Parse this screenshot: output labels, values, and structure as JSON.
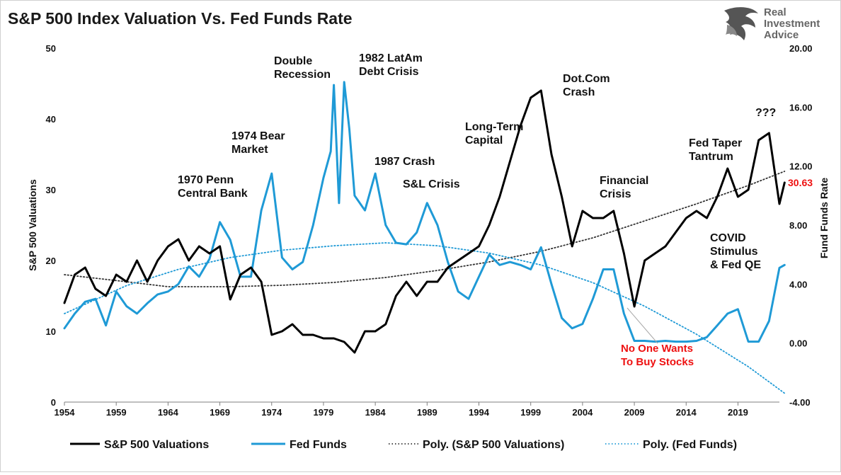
{
  "logo": {
    "line1": "Real",
    "line2": "Investment",
    "line3": "Advice"
  },
  "chart_data": {
    "type": "line",
    "title": "S&P 500 Index Valuation Vs. Fed Funds Rate",
    "xlabel": "",
    "ylabel_left": "S&P 500 Valuations",
    "ylabel_right": "Fund Funds Rate",
    "xlim": [
      1954,
      2023
    ],
    "ylim_left": [
      0,
      50
    ],
    "ylim_right": [
      -4,
      20
    ],
    "x_ticks": [
      "1954",
      "1959",
      "1964",
      "1969",
      "1974",
      "1979",
      "1984",
      "1989",
      "1994",
      "1999",
      "2004",
      "2009",
      "2014",
      "2019"
    ],
    "y_left_ticks": [
      "0",
      "10",
      "20",
      "30",
      "40",
      "50"
    ],
    "y_right_ticks": [
      "-4.00",
      "0.00",
      "4.00",
      "8.00",
      "12.00",
      "16.00",
      "20.00"
    ],
    "grid": false,
    "legend_position": "bottom",
    "last_value_label": "30.63",
    "series": [
      {
        "name": "S&P 500 Valuations",
        "axis": "left",
        "color": "#000000",
        "style": "solid",
        "points": [
          [
            1954,
            14
          ],
          [
            1955,
            18
          ],
          [
            1956,
            19
          ],
          [
            1957,
            16
          ],
          [
            1958,
            15
          ],
          [
            1959,
            18
          ],
          [
            1960,
            17
          ],
          [
            1961,
            20
          ],
          [
            1962,
            17
          ],
          [
            1963,
            20
          ],
          [
            1964,
            22
          ],
          [
            1965,
            23
          ],
          [
            1966,
            20
          ],
          [
            1967,
            22
          ],
          [
            1968,
            21
          ],
          [
            1969,
            22
          ],
          [
            1970,
            14.5
          ],
          [
            1971,
            18
          ],
          [
            1972,
            19
          ],
          [
            1973,
            17
          ],
          [
            1974,
            9.5
          ],
          [
            1975,
            10
          ],
          [
            1976,
            11
          ],
          [
            1977,
            9.5
          ],
          [
            1978,
            9.5
          ],
          [
            1979,
            9
          ],
          [
            1980,
            9
          ],
          [
            1981,
            8.5
          ],
          [
            1982,
            7
          ],
          [
            1983,
            10
          ],
          [
            1984,
            10
          ],
          [
            1985,
            11
          ],
          [
            1986,
            15
          ],
          [
            1987,
            17
          ],
          [
            1988,
            15
          ],
          [
            1989,
            17
          ],
          [
            1990,
            17
          ],
          [
            1991,
            19
          ],
          [
            1992,
            20
          ],
          [
            1993,
            21
          ],
          [
            1994,
            22
          ],
          [
            1995,
            25
          ],
          [
            1996,
            29
          ],
          [
            1997,
            34
          ],
          [
            1998,
            39
          ],
          [
            1999,
            43
          ],
          [
            2000,
            44
          ],
          [
            2001,
            35
          ],
          [
            2002,
            29
          ],
          [
            2003,
            22
          ],
          [
            2004,
            27
          ],
          [
            2005,
            26
          ],
          [
            2006,
            26
          ],
          [
            2007,
            27
          ],
          [
            2008,
            21
          ],
          [
            2009,
            13.5
          ],
          [
            2010,
            20
          ],
          [
            2011,
            21
          ],
          [
            2012,
            22
          ],
          [
            2013,
            24
          ],
          [
            2014,
            26
          ],
          [
            2015,
            27
          ],
          [
            2016,
            26
          ],
          [
            2017,
            29
          ],
          [
            2018,
            33
          ],
          [
            2019,
            29
          ],
          [
            2020,
            30
          ],
          [
            2021,
            37
          ],
          [
            2022,
            38
          ],
          [
            2023,
            28
          ],
          [
            2023.5,
            31
          ]
        ]
      },
      {
        "name": "Fed Funds",
        "axis": "right",
        "color": "#1f9ad6",
        "style": "solid",
        "points": [
          [
            1954,
            1
          ],
          [
            1955,
            2
          ],
          [
            1956,
            2.8
          ],
          [
            1957,
            3
          ],
          [
            1958,
            1.2
          ],
          [
            1959,
            3.5
          ],
          [
            1960,
            2.5
          ],
          [
            1961,
            2
          ],
          [
            1962,
            2.7
          ],
          [
            1963,
            3.3
          ],
          [
            1964,
            3.5
          ],
          [
            1965,
            4
          ],
          [
            1966,
            5.2
          ],
          [
            1967,
            4.5
          ],
          [
            1968,
            5.7
          ],
          [
            1969,
            8.2
          ],
          [
            1970,
            7
          ],
          [
            1971,
            4.5
          ],
          [
            1972,
            4.5
          ],
          [
            1973,
            9
          ],
          [
            1974,
            11.5
          ],
          [
            1975,
            5.8
          ],
          [
            1976,
            5
          ],
          [
            1977,
            5.5
          ],
          [
            1978,
            8
          ],
          [
            1979,
            11.2
          ],
          [
            1979.7,
            13
          ],
          [
            1980,
            17.5
          ],
          [
            1980.5,
            9.5
          ],
          [
            1981,
            17.7
          ],
          [
            1981.5,
            14.5
          ],
          [
            1982,
            10
          ],
          [
            1983,
            9
          ],
          [
            1984,
            11.5
          ],
          [
            1985,
            8
          ],
          [
            1986,
            6.8
          ],
          [
            1987,
            6.7
          ],
          [
            1988,
            7.5
          ],
          [
            1989,
            9.5
          ],
          [
            1990,
            8
          ],
          [
            1991,
            5.5
          ],
          [
            1992,
            3.5
          ],
          [
            1993,
            3
          ],
          [
            1994,
            4.5
          ],
          [
            1995,
            6
          ],
          [
            1996,
            5.3
          ],
          [
            1997,
            5.5
          ],
          [
            1998,
            5.3
          ],
          [
            1999,
            5
          ],
          [
            2000,
            6.5
          ],
          [
            2001,
            4
          ],
          [
            2002,
            1.7
          ],
          [
            2003,
            1
          ],
          [
            2004,
            1.3
          ],
          [
            2005,
            3
          ],
          [
            2006,
            5
          ],
          [
            2007,
            5
          ],
          [
            2008,
            2
          ],
          [
            2009,
            0.15
          ],
          [
            2010,
            0.15
          ],
          [
            2011,
            0.1
          ],
          [
            2012,
            0.15
          ],
          [
            2013,
            0.1
          ],
          [
            2014,
            0.1
          ],
          [
            2015,
            0.15
          ],
          [
            2016,
            0.4
          ],
          [
            2017,
            1.2
          ],
          [
            2018,
            2
          ],
          [
            2019,
            2.3
          ],
          [
            2020,
            0.1
          ],
          [
            2021,
            0.1
          ],
          [
            2022,
            1.5
          ],
          [
            2023,
            5.1
          ],
          [
            2023.5,
            5.3
          ]
        ]
      },
      {
        "name": "Poly. (S&P 500 Valuations)",
        "axis": "left",
        "color": "#333333",
        "style": "dotted",
        "points": [
          [
            1954,
            18
          ],
          [
            1960,
            17
          ],
          [
            1964,
            16.3
          ],
          [
            1970,
            16.3
          ],
          [
            1975,
            16.5
          ],
          [
            1980,
            16.9
          ],
          [
            1985,
            17.6
          ],
          [
            1990,
            18.6
          ],
          [
            1995,
            19.8
          ],
          [
            2000,
            21.3
          ],
          [
            2005,
            23.2
          ],
          [
            2010,
            25.6
          ],
          [
            2015,
            28
          ],
          [
            2020,
            30.6
          ],
          [
            2023.5,
            32.6
          ]
        ]
      },
      {
        "name": "Poly. (Fed Funds)",
        "axis": "right",
        "color": "#1f9ad6",
        "style": "dotted",
        "points": [
          [
            1954,
            2
          ],
          [
            1960,
            3.9
          ],
          [
            1965,
            5
          ],
          [
            1970,
            5.8
          ],
          [
            1975,
            6.3
          ],
          [
            1980,
            6.6
          ],
          [
            1985,
            6.8
          ],
          [
            1990,
            6.6
          ],
          [
            1995,
            6.1
          ],
          [
            2000,
            5.3
          ],
          [
            2005,
            4.1
          ],
          [
            2010,
            2.5
          ],
          [
            2015,
            0.6
          ],
          [
            2020,
            -1.6
          ],
          [
            2023.5,
            -3.4
          ]
        ]
      }
    ],
    "annotations": [
      {
        "lines": [
          "1970 Penn",
          "Central Bank"
        ],
        "color": "black"
      },
      {
        "lines": [
          "1974 Bear",
          "Market"
        ],
        "color": "black"
      },
      {
        "lines": [
          "Double",
          "Recession"
        ],
        "color": "black"
      },
      {
        "lines": [
          "1982 LatAm",
          "Debt Crisis"
        ],
        "color": "black"
      },
      {
        "lines": [
          "1987 Crash"
        ],
        "color": "black"
      },
      {
        "lines": [
          "S&L Crisis"
        ],
        "color": "black"
      },
      {
        "lines": [
          "Long-Term",
          "Capital"
        ],
        "color": "black"
      },
      {
        "lines": [
          "Dot.Com",
          "Crash"
        ],
        "color": "black"
      },
      {
        "lines": [
          "Financial",
          "Crisis"
        ],
        "color": "black"
      },
      {
        "lines": [
          "Fed Taper",
          "Tantrum"
        ],
        "color": "black"
      },
      {
        "lines": [
          "???"
        ],
        "color": "black"
      },
      {
        "lines": [
          "COVID",
          "Stimulus",
          "& Fed QE"
        ],
        "color": "black"
      },
      {
        "lines": [
          "No One Wants",
          "To Buy Stocks"
        ],
        "color": "red"
      }
    ]
  }
}
